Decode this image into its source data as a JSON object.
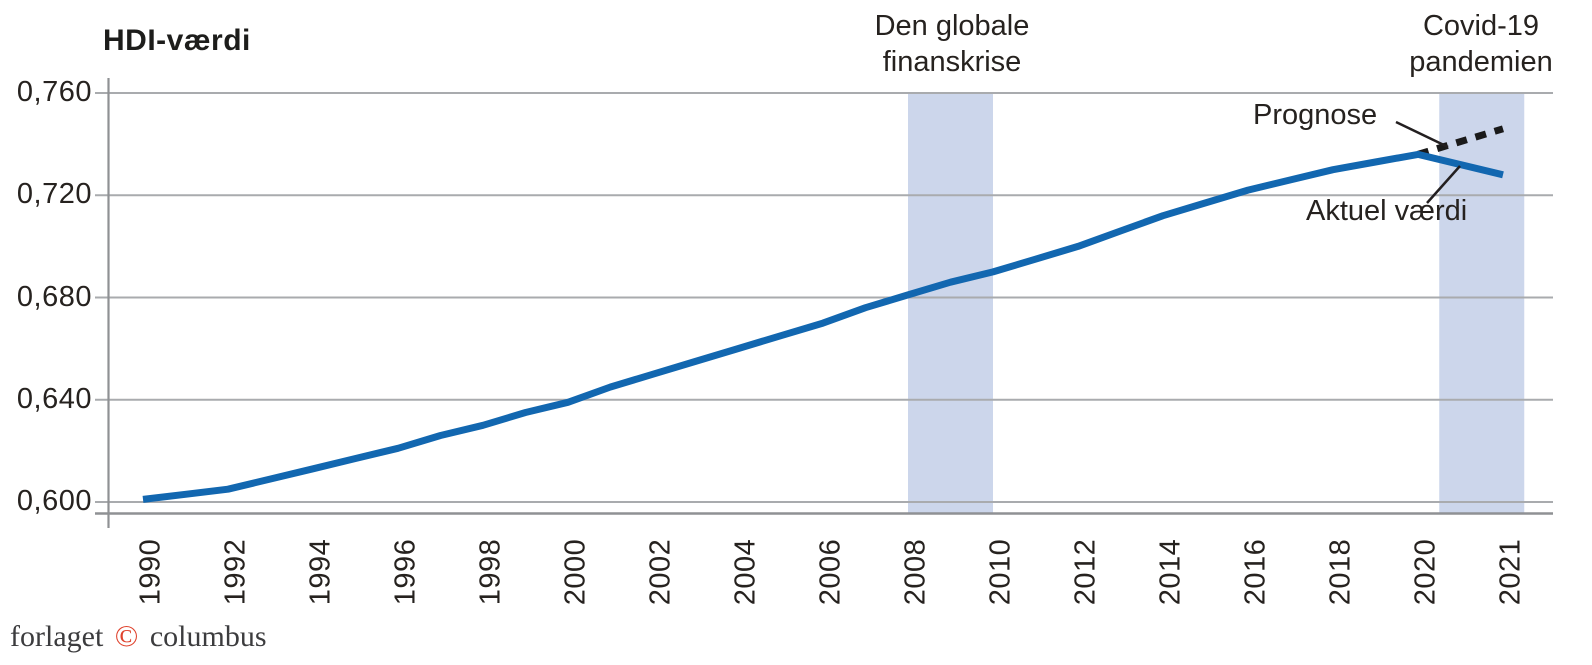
{
  "title": "HDI-værdi",
  "annotations": {
    "financial_crisis": {
      "line1": "Den globale",
      "line2": "finanskrise"
    },
    "covid": {
      "line1": "Covid-19",
      "line2": "pandemien"
    },
    "prognose_label": "Prognose",
    "aktuel_label": "Aktuel værdi"
  },
  "footer": {
    "publisher_prefix": "forlaget",
    "copyright_symbol": "©",
    "publisher_suffix": "columbus"
  },
  "chart_data": {
    "type": "line",
    "title": "HDI-værdi",
    "x": [
      1990,
      1991,
      1992,
      1993,
      1994,
      1995,
      1996,
      1997,
      1998,
      1999,
      2000,
      2001,
      2002,
      2003,
      2004,
      2005,
      2006,
      2007,
      2008,
      2009,
      2010,
      2011,
      2012,
      2013,
      2014,
      2015,
      2016,
      2017,
      2018,
      2019,
      2020,
      2021
    ],
    "series": [
      {
        "name": "Aktuel værdi",
        "style": "solid",
        "color": "#1267b0",
        "values": [
          0.601,
          0.603,
          0.605,
          0.609,
          0.613,
          0.617,
          0.621,
          0.626,
          0.63,
          0.635,
          0.639,
          0.645,
          0.65,
          0.655,
          0.66,
          0.665,
          0.67,
          0.676,
          0.681,
          0.686,
          0.69,
          0.695,
          0.7,
          0.706,
          0.712,
          0.717,
          0.722,
          0.726,
          0.73,
          0.733,
          0.736,
          0.728
        ]
      },
      {
        "name": "Prognose",
        "style": "dashed",
        "color": "#1a1a1a",
        "x": [
          2020,
          2021
        ],
        "values": [
          0.736,
          0.746
        ]
      }
    ],
    "ylim": [
      0.6,
      0.76
    ],
    "yticks": [
      {
        "label": "0,760",
        "value": 0.76
      },
      {
        "label": "0,720",
        "value": 0.72
      },
      {
        "label": "0,680",
        "value": 0.68
      },
      {
        "label": "0,640",
        "value": 0.64
      },
      {
        "label": "0,600",
        "value": 0.6
      }
    ],
    "xticks": [
      1990,
      1992,
      1994,
      1996,
      1998,
      2000,
      2002,
      2004,
      2006,
      2008,
      2010,
      2012,
      2014,
      2016,
      2018,
      2020,
      2021
    ],
    "highlight_bands": [
      {
        "label": "Den globale finanskrise",
        "from": 2008,
        "to": 2010
      },
      {
        "label": "Covid-19 pandemien",
        "from": 2020.25,
        "to": 2021.25
      }
    ],
    "band_color": "#ccd6eb",
    "grid": "horizontal",
    "gridline_color": "#a9abae",
    "axis_color": "#8f9194",
    "legend_position": "annotated-on-chart"
  }
}
